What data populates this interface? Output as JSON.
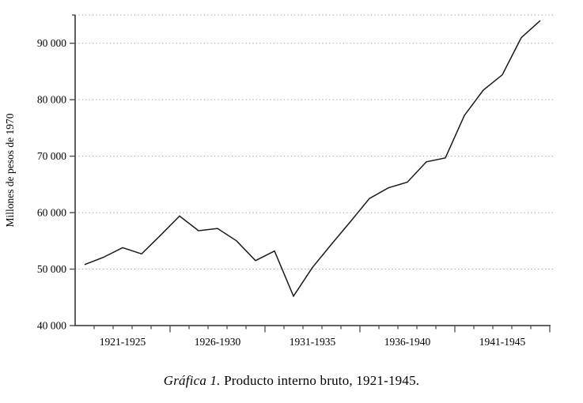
{
  "figure": {
    "caption_italic": "Gráfica 1.",
    "caption_rest": " Producto interno bruto, 1921-1945."
  },
  "chart_data": {
    "type": "line",
    "title": "",
    "xlabel": "",
    "ylabel": "Millones de pesos de 1970",
    "series_name": "Producto interno bruto",
    "x": [
      1921,
      1922,
      1923,
      1924,
      1925,
      1926,
      1927,
      1928,
      1929,
      1930,
      1931,
      1932,
      1933,
      1934,
      1935,
      1936,
      1937,
      1938,
      1939,
      1940,
      1941,
      1942,
      1943,
      1944,
      1945
    ],
    "values": [
      50800,
      52100,
      53800,
      52700,
      56000,
      59400,
      56800,
      57200,
      55000,
      51500,
      53200,
      45200,
      50300,
      54400,
      58400,
      62500,
      64400,
      65400,
      69000,
      69700,
      77200,
      81700,
      84400,
      91000,
      94000
    ],
    "x_group_labels": [
      "1921-1925",
      "1926-1930",
      "1931-1935",
      "1936-1940",
      "1941-1945"
    ],
    "y_ticks": [
      40000,
      50000,
      60000,
      70000,
      80000,
      90000
    ],
    "y_tick_labels": [
      "40 000",
      "50 000",
      "60 000",
      "70 000",
      "80 000",
      "90 000"
    ],
    "ylim": [
      40000,
      95000
    ],
    "grid": "horizontal-dotted",
    "legend": "none"
  },
  "colors": {
    "line": "#1a1a1a",
    "axis": "#4d4d4d",
    "gridline": "#999999",
    "text": "#000000",
    "background": "#ffffff"
  }
}
